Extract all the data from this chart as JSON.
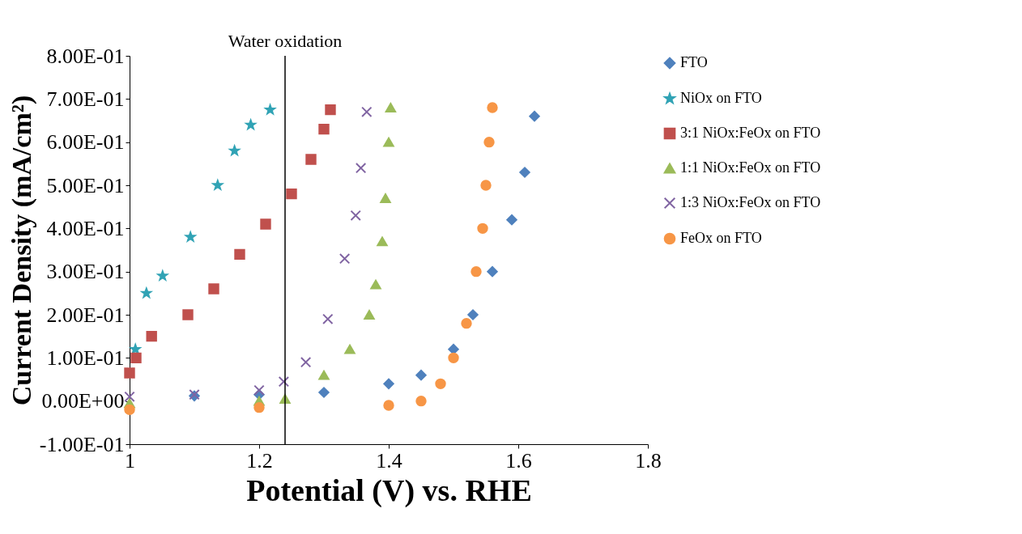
{
  "chart_data": {
    "type": "scatter",
    "xlabel": "Potential (V) vs. RHE",
    "ylabel": "Current Density (mA/cm²)",
    "xlim": [
      1,
      1.8
    ],
    "xticks": [
      1,
      1.2,
      1.4,
      1.6,
      1.8
    ],
    "ylim": [
      -0.1,
      0.8
    ],
    "yticks": [
      {
        "value": -0.1,
        "label": "-1.00E-01"
      },
      {
        "value": 0,
        "label": "0.00E+00"
      },
      {
        "value": 0.1,
        "label": "1.00E-01"
      },
      {
        "value": 0.2,
        "label": "2.00E-01"
      },
      {
        "value": 0.3,
        "label": "3.00E-01"
      },
      {
        "value": 0.4,
        "label": "4.00E-01"
      },
      {
        "value": 0.5,
        "label": "5.00E-01"
      },
      {
        "value": 0.6,
        "label": "6.00E-01"
      },
      {
        "value": 0.7,
        "label": "7.00E-01"
      },
      {
        "value": 0.8,
        "label": "8.00E-01"
      }
    ],
    "grid": false,
    "legend": "right",
    "ref_lines": [
      {
        "axis": "x",
        "value": 1.24,
        "label": "Water oxidation",
        "color": "#000000"
      }
    ],
    "series": [
      {
        "name": "FTO",
        "color": "#4f81bd",
        "marker": "diamond",
        "x": [
          1.1,
          1.2,
          1.3,
          1.4,
          1.45,
          1.5,
          1.53,
          1.56,
          1.59,
          1.61,
          1.625
        ],
        "values": [
          0.012,
          0.015,
          0.02,
          0.04,
          0.06,
          0.12,
          0.2,
          0.3,
          0.42,
          0.53,
          0.66
        ]
      },
      {
        "name": "NiOx on FTO",
        "color": "#31a3b5",
        "marker": "star",
        "x": [
          1.009,
          1.026,
          1.051,
          1.094,
          1.136,
          1.162,
          1.187,
          1.217
        ],
        "values": [
          0.12,
          0.25,
          0.29,
          0.38,
          0.5,
          0.58,
          0.64,
          0.675
        ]
      },
      {
        "name": "3:1 NiOx:FeOx on FTO",
        "color": "#c0504d",
        "marker": "square",
        "x": [
          1.0,
          1.01,
          1.034,
          1.09,
          1.13,
          1.17,
          1.21,
          1.25,
          1.28,
          1.3,
          1.31
        ],
        "values": [
          0.065,
          0.1,
          0.15,
          0.2,
          0.26,
          0.34,
          0.41,
          0.48,
          0.56,
          0.63,
          0.675
        ]
      },
      {
        "name": "1:1 NiOx:FeOx on FTO",
        "color": "#9bbb59",
        "marker": "triangle",
        "x": [
          1.0,
          1.2,
          1.24,
          1.3,
          1.34,
          1.37,
          1.38,
          1.39,
          1.395,
          1.4,
          1.403
        ],
        "values": [
          -0.005,
          0.0,
          0.005,
          0.06,
          0.12,
          0.2,
          0.27,
          0.37,
          0.47,
          0.6,
          0.68
        ]
      },
      {
        "name": "1:3 NiOx:FeOx on FTO",
        "color": "#8064a2",
        "marker": "cross",
        "x": [
          1.0,
          1.1,
          1.2,
          1.238,
          1.272,
          1.306,
          1.332,
          1.349,
          1.357,
          1.366
        ],
        "values": [
          0.01,
          0.015,
          0.025,
          0.045,
          0.09,
          0.19,
          0.33,
          0.43,
          0.54,
          0.67
        ]
      },
      {
        "name": "FeOx on FTO",
        "color": "#f79646",
        "marker": "circle",
        "x": [
          1.0,
          1.2,
          1.4,
          1.45,
          1.48,
          1.5,
          1.52,
          1.535,
          1.545,
          1.55,
          1.555,
          1.56
        ],
        "values": [
          -0.02,
          -0.015,
          -0.01,
          0.0,
          0.04,
          0.1,
          0.18,
          0.3,
          0.4,
          0.5,
          0.6,
          0.68
        ]
      }
    ]
  }
}
